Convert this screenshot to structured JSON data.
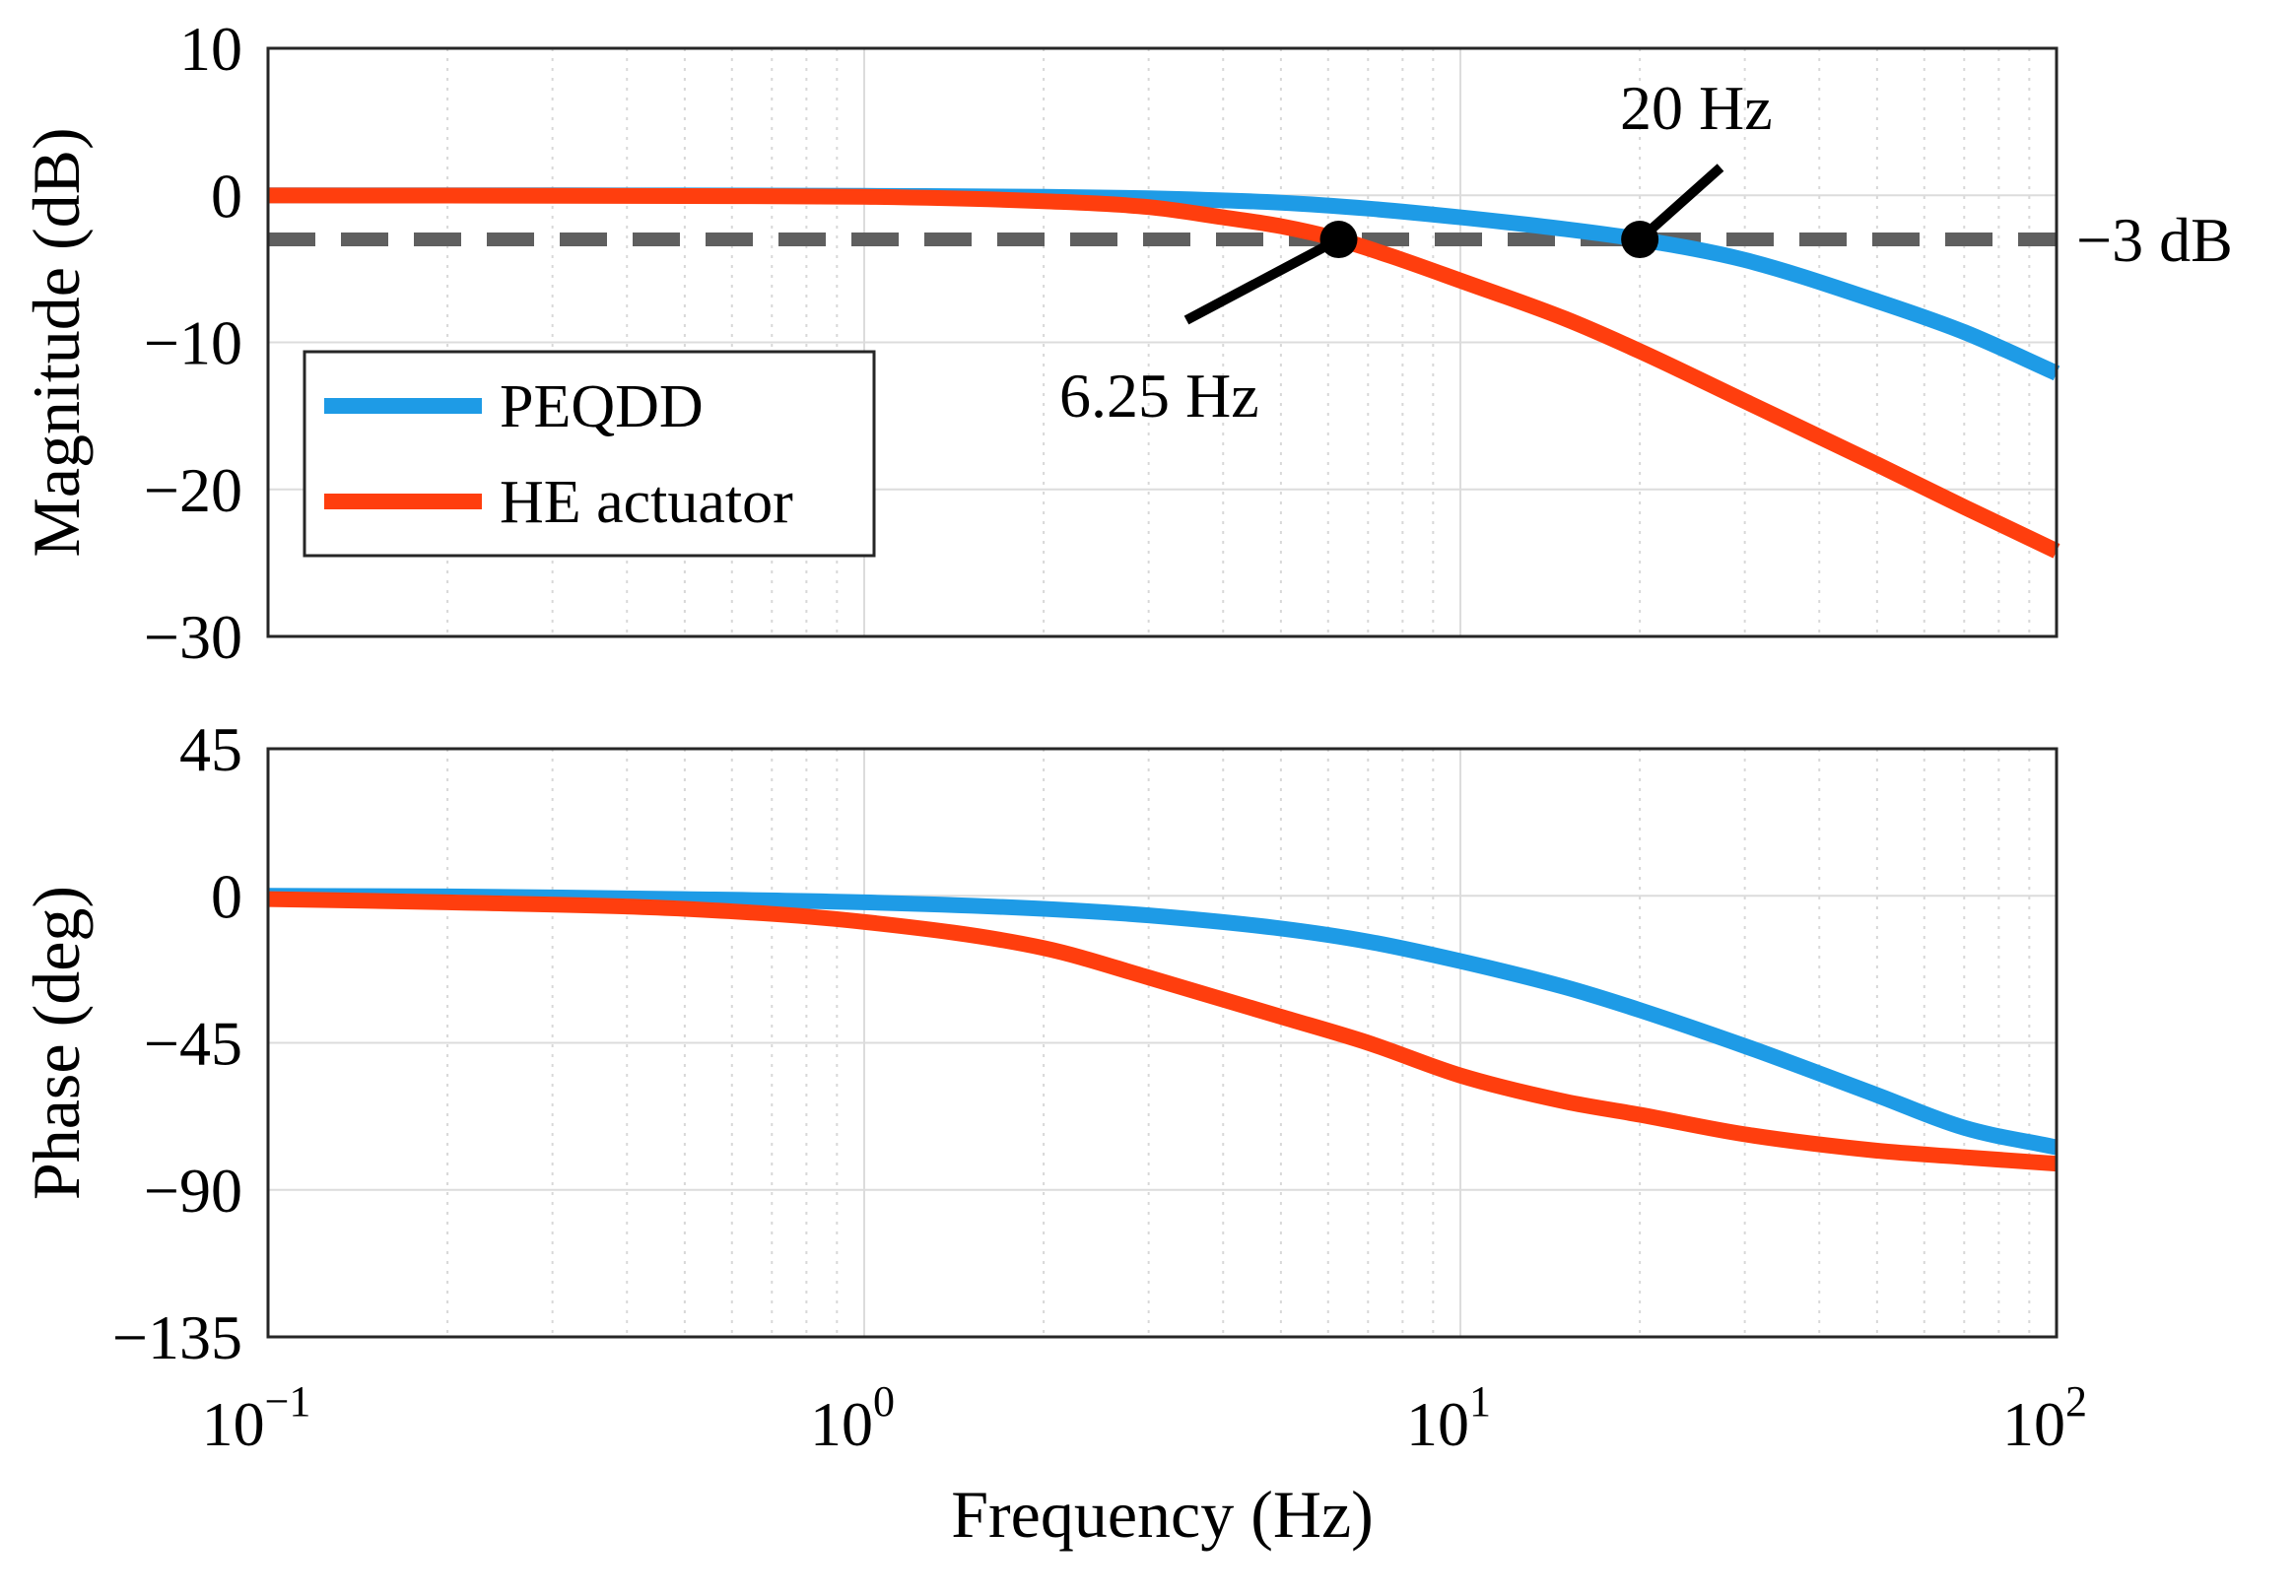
{
  "chart_data": [
    {
      "type": "line",
      "panel": "magnitude",
      "x_scale": "log",
      "xlim": [
        0.1,
        100
      ],
      "ylim": [
        -30,
        10
      ],
      "ylabel": "Magnitude (dB)",
      "yticks": [
        "10",
        "0",
        "−10",
        "−20",
        "−30"
      ],
      "ytick_values": [
        10,
        0,
        -10,
        -20,
        -30
      ],
      "grid": true,
      "legend": {
        "placement": "middle-left",
        "entries": [
          "PEQDD",
          "HE actuator"
        ]
      },
      "series": [
        {
          "name": "PEQDD",
          "color": "#1e9be6",
          "x": [
            0.1,
            0.2,
            0.5,
            1,
            2,
            3,
            5,
            7,
            10,
            15,
            20,
            30,
            50,
            70,
            100
          ],
          "y": [
            0,
            0,
            -0.01,
            -0.04,
            -0.1,
            -0.2,
            -0.5,
            -0.9,
            -1.5,
            -2.3,
            -3.0,
            -4.4,
            -7.2,
            -9.3,
            -12.1
          ]
        },
        {
          "name": "HE actuator",
          "color": "#ff3e0e",
          "x": [
            0.1,
            0.2,
            0.5,
            1,
            2,
            3,
            4,
            5,
            6.25,
            8,
            10,
            15,
            20,
            30,
            50,
            70,
            100
          ],
          "y": [
            -0.01,
            -0.02,
            -0.05,
            -0.1,
            -0.4,
            -0.8,
            -1.5,
            -2.1,
            -3.0,
            -4.4,
            -5.8,
            -8.4,
            -10.6,
            -14.0,
            -18.3,
            -21.2,
            -24.2
          ]
        }
      ],
      "reference_line": {
        "y": -3,
        "label": "−3 dB",
        "color": "#5f5f5f"
      },
      "annotations": [
        {
          "label": "6.25 Hz",
          "x": 6.25,
          "y": -3
        },
        {
          "label": "20 Hz",
          "x": 20,
          "y": -3
        }
      ]
    },
    {
      "type": "line",
      "panel": "phase",
      "x_scale": "log",
      "xlim": [
        0.1,
        100
      ],
      "ylim": [
        -135,
        45
      ],
      "xlabel": "Frequency (Hz)",
      "ylabel": "Phase (deg)",
      "xticks": [
        {
          "base": "10",
          "exp": "−1",
          "value": 0.1
        },
        {
          "base": "10",
          "exp": "0",
          "value": 1
        },
        {
          "base": "10",
          "exp": "1",
          "value": 10
        },
        {
          "base": "10",
          "exp": "2",
          "value": 100
        }
      ],
      "yticks": [
        "45",
        "0",
        "−45",
        "−90",
        "−135"
      ],
      "ytick_values": [
        45,
        0,
        -45,
        -90,
        -135
      ],
      "grid": true,
      "series": [
        {
          "name": "PEQDD",
          "color": "#1e9be6",
          "x": [
            0.1,
            0.2,
            0.5,
            1,
            2,
            3,
            5,
            7,
            10,
            15,
            20,
            30,
            50,
            70,
            100
          ],
          "y": [
            0,
            -0.2,
            -1,
            -2,
            -4,
            -6,
            -10,
            -14,
            -20,
            -28,
            -35,
            -46,
            -61,
            -71,
            -77
          ]
        },
        {
          "name": "HE actuator",
          "color": "#ff3e0e",
          "x": [
            0.1,
            0.2,
            0.5,
            1,
            2,
            3,
            5,
            7,
            10,
            15,
            20,
            30,
            50,
            70,
            100
          ],
          "y": [
            -1,
            -2,
            -4,
            -8,
            -16,
            -25,
            -37,
            -45,
            -55,
            -63,
            -67,
            -73,
            -78,
            -80,
            -82
          ]
        }
      ]
    }
  ]
}
